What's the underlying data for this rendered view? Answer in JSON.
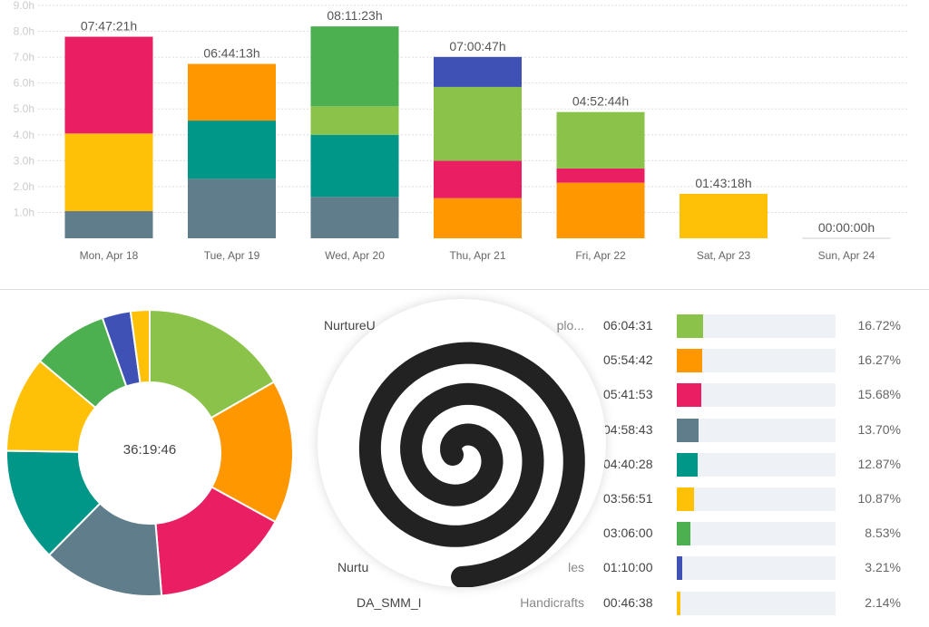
{
  "chart_data": [
    {
      "type": "bar",
      "stacked": true,
      "categories": [
        "Mon, Apr 18",
        "Tue, Apr 19",
        "Wed, Apr 20",
        "Thu, Apr 21",
        "Fri, Apr 22",
        "Sat, Apr 23",
        "Sun, Apr 24"
      ],
      "totals": [
        "07:47:21h",
        "06:44:13h",
        "08:11:23h",
        "07:00:47h",
        "04:52:44h",
        "01:43:18h",
        "00:00:00h"
      ],
      "yticks": [
        "1.0h",
        "2.0h",
        "3.0h",
        "4.0h",
        "5.0h",
        "6.0h",
        "7.0h",
        "8.0h",
        "9.0h"
      ],
      "ylim": [
        0,
        9
      ],
      "grid": true,
      "stacks": [
        [
          {
            "color": "#607d8b",
            "value": 1.05
          },
          {
            "color": "#ffc107",
            "value": 3.0
          },
          {
            "color": "#e91e63",
            "value": 3.74
          }
        ],
        [
          {
            "color": "#607d8b",
            "value": 2.3
          },
          {
            "color": "#009688",
            "value": 2.25
          },
          {
            "color": "#ff9800",
            "value": 2.19
          }
        ],
        [
          {
            "color": "#607d8b",
            "value": 1.6
          },
          {
            "color": "#009688",
            "value": 2.4
          },
          {
            "color": "#8bc34a",
            "value": 1.1
          },
          {
            "color": "#4caf50",
            "value": 3.09
          }
        ],
        [
          {
            "color": "#ff9800",
            "value": 1.55
          },
          {
            "color": "#e91e63",
            "value": 1.45
          },
          {
            "color": "#8bc34a",
            "value": 2.85
          },
          {
            "color": "#3f51b5",
            "value": 1.16
          }
        ],
        [
          {
            "color": "#ff9800",
            "value": 2.15
          },
          {
            "color": "#e91e63",
            "value": 0.55
          },
          {
            "color": "#8bc34a",
            "value": 2.18
          }
        ],
        [
          {
            "color": "#ffc107",
            "value": 1.72
          }
        ],
        []
      ]
    },
    {
      "type": "pie",
      "donut": true,
      "center_label": "36:19:46",
      "slices": [
        {
          "color": "#8bc34a",
          "value": 16.72
        },
        {
          "color": "#ff9800",
          "value": 16.27
        },
        {
          "color": "#e91e63",
          "value": 15.68
        },
        {
          "color": "#607d8b",
          "value": 13.7
        },
        {
          "color": "#009688",
          "value": 12.87
        },
        {
          "color": "#ffc107",
          "value": 10.87
        },
        {
          "color": "#4caf50",
          "value": 8.53
        },
        {
          "color": "#3f51b5",
          "value": 3.21
        },
        {
          "color": "#ffc107",
          "value": 2.14
        }
      ]
    }
  ],
  "list": [
    {
      "label_left": "NurtureU_",
      "label_right": "plo...",
      "time": "06:04:31",
      "pct": "16.72%",
      "value": 16.72,
      "color": "#8bc34a"
    },
    {
      "label_left": "",
      "label_right": "",
      "time": "05:54:42",
      "pct": "16.27%",
      "value": 16.27,
      "color": "#ff9800"
    },
    {
      "label_left": "",
      "label_right": "",
      "time": "05:41:53",
      "pct": "15.68%",
      "value": 15.68,
      "color": "#e91e63"
    },
    {
      "label_left": "",
      "label_right": "",
      "time": "04:58:43",
      "pct": "13.70%",
      "value": 13.7,
      "color": "#607d8b"
    },
    {
      "label_left": "",
      "label_right": "",
      "time": "04:40:28",
      "pct": "12.87%",
      "value": 12.87,
      "color": "#009688"
    },
    {
      "label_left": "",
      "label_right": "",
      "time": "03:56:51",
      "pct": "10.87%",
      "value": 10.87,
      "color": "#ffc107"
    },
    {
      "label_left": "",
      "label_right": "",
      "time": "03:06:00",
      "pct": "8.53%",
      "value": 8.53,
      "color": "#4caf50"
    },
    {
      "label_left": "Nurtu",
      "label_right": "les",
      "time": "01:10:00",
      "pct": "3.21%",
      "value": 3.21,
      "color": "#3f51b5"
    },
    {
      "label_left": "DA_SMM_I",
      "label_right": "Handicrafts",
      "time": "00:46:38",
      "pct": "2.14%",
      "value": 2.14,
      "color": "#ffc107"
    }
  ],
  "loading": {
    "icon": "spiral-loading-icon"
  }
}
